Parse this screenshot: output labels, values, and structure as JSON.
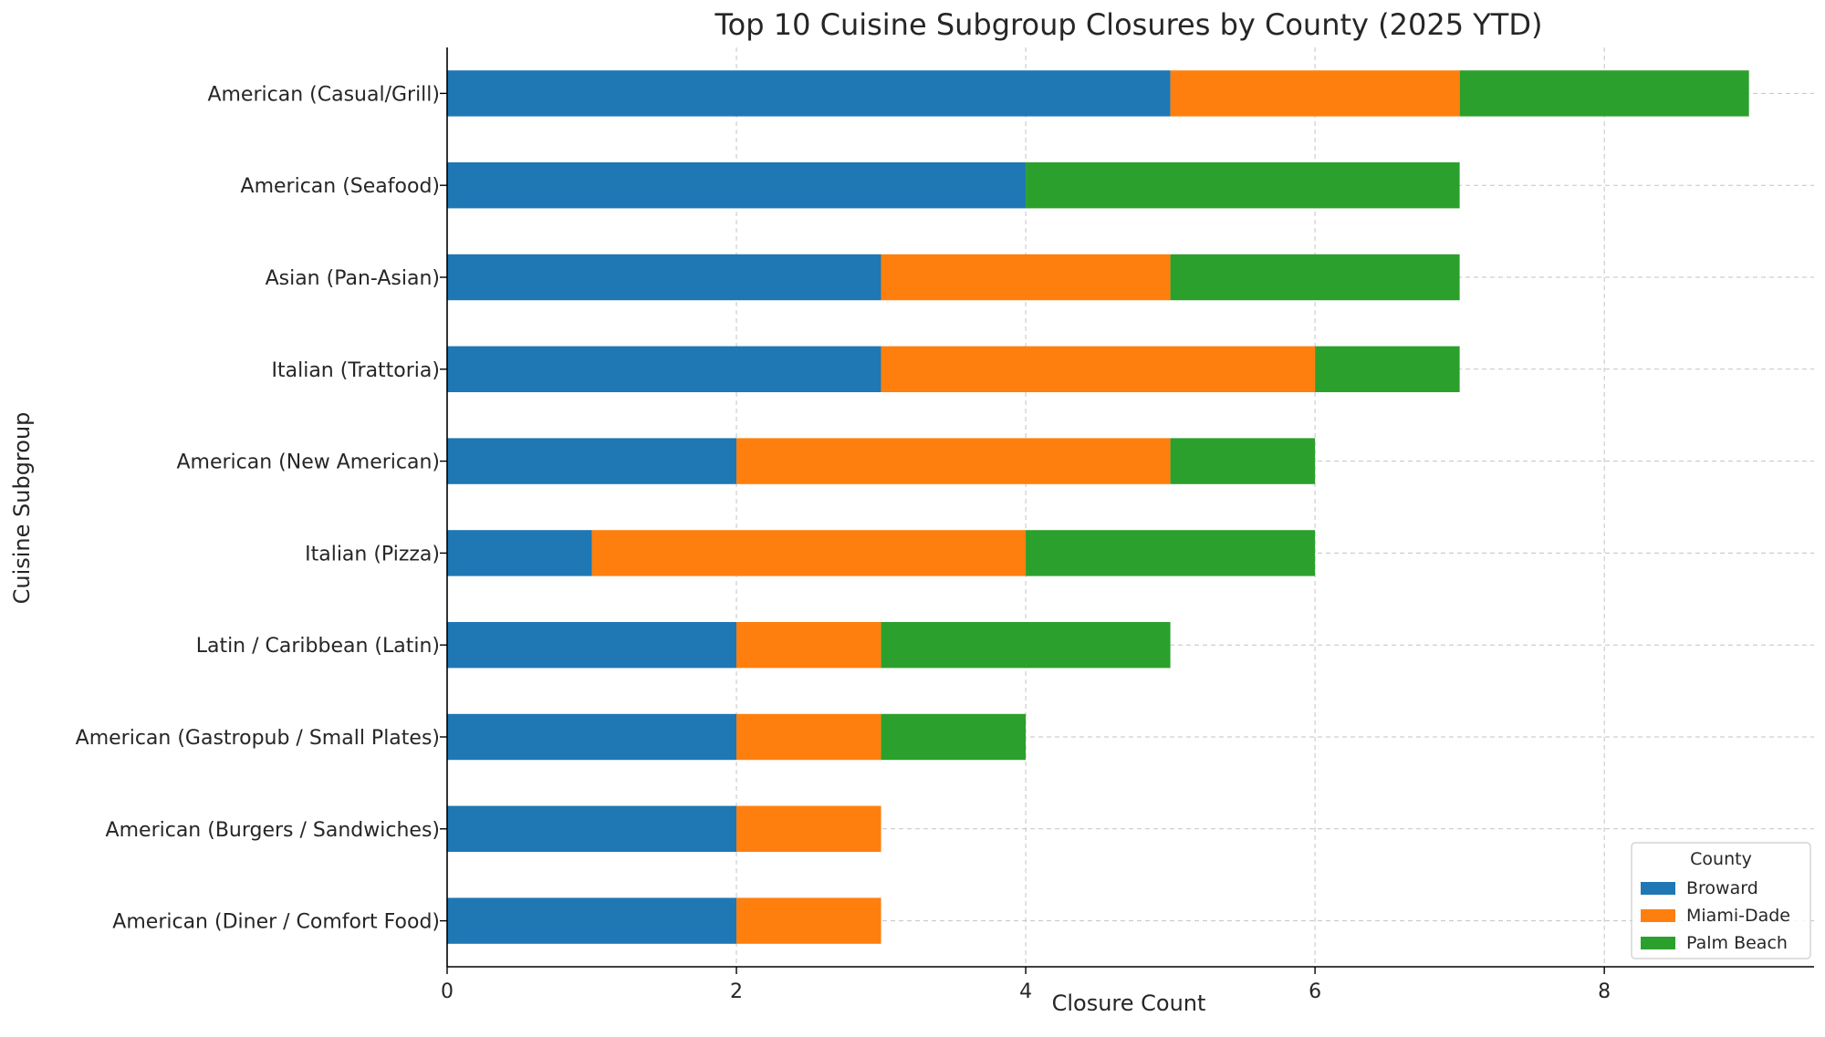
{
  "chart_data": {
    "type": "bar",
    "orientation": "horizontal",
    "stacked": true,
    "title": "Top 10 Cuisine Subgroup Closures by County (2025 YTD)",
    "xlabel": "Closure Count",
    "ylabel": "Cuisine Subgroup",
    "xlim": [
      0,
      9.45
    ],
    "xticks": [
      0,
      2,
      4,
      6,
      8
    ],
    "grid": true,
    "legend": {
      "title": "County",
      "placement": "bottom-right"
    },
    "categories": [
      "American (Casual/Grill)",
      "American (Seafood)",
      "Asian (Pan-Asian)",
      "Italian (Trattoria)",
      "American (New American)",
      "Italian (Pizza)",
      "Latin / Caribbean (Latin)",
      "American (Gastropub / Small Plates)",
      "American (Burgers / Sandwiches)",
      "American (Diner / Comfort Food)"
    ],
    "series": [
      {
        "name": "Broward",
        "color": "#1f77b4",
        "values": [
          5,
          4,
          3,
          3,
          2,
          1,
          2,
          2,
          2,
          2
        ]
      },
      {
        "name": "Miami-Dade",
        "color": "#ff7f0e",
        "values": [
          2,
          0,
          2,
          3,
          3,
          3,
          1,
          1,
          1,
          1
        ]
      },
      {
        "name": "Palm Beach",
        "color": "#2ca02c",
        "values": [
          2,
          3,
          2,
          1,
          1,
          2,
          2,
          1,
          0,
          0
        ]
      }
    ]
  }
}
